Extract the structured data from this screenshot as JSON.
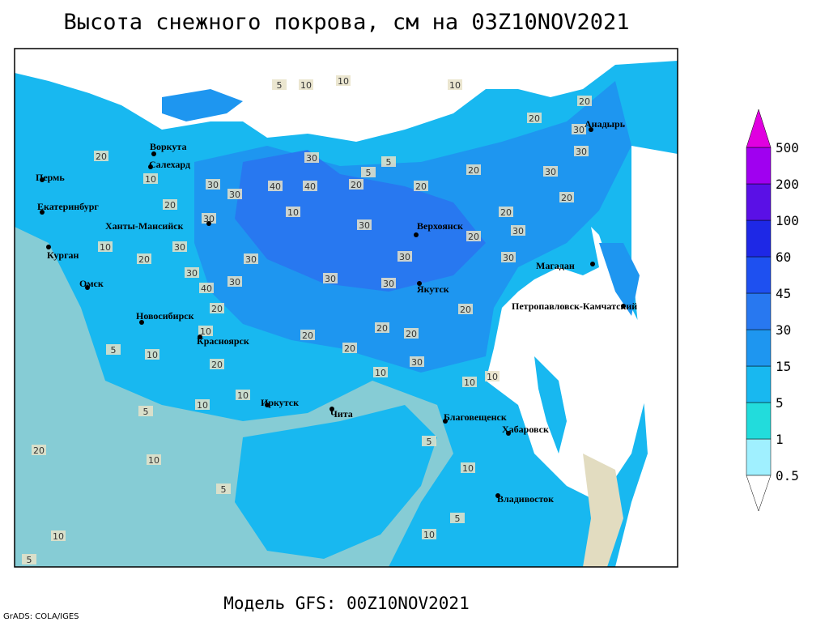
{
  "title": "Высота снежного покрова, см на 03Z10NOV2021",
  "footer": "Модель GFS: 00Z10NOV2021",
  "credit": "GrADS: COLA/IGES",
  "cities": [
    "Воркута",
    "Салехард",
    "Пермь",
    "Екатеринбург",
    "Ханты-Мансийск",
    "Курган",
    "Омск",
    "Новосибирск",
    "Красноярск",
    "Иркутск",
    "Чита",
    "Верхоянск",
    "Якутск",
    "Анадырь",
    "Магадан",
    "Петропавловск-Камчатский",
    "Благовещенск",
    "Хабаровск",
    "Владивосток"
  ],
  "contour_labels": [
    10,
    10,
    5,
    10,
    5,
    30,
    40,
    40,
    30,
    30,
    20,
    10,
    20,
    30,
    10,
    20,
    30,
    30,
    40,
    30,
    30,
    30,
    30,
    30,
    30,
    20,
    20,
    30,
    30,
    20,
    20,
    20,
    20,
    30,
    20,
    10,
    20,
    10,
    10,
    5,
    20,
    10,
    10,
    5,
    20,
    10,
    5,
    5,
    10,
    5,
    10,
    10,
    5,
    20,
    30,
    30,
    30,
    20,
    20,
    20,
    20,
    5,
    20,
    10,
    10,
    10
  ],
  "legend": {
    "levels": [
      0.5,
      1,
      5,
      15,
      30,
      45,
      60,
      100,
      200,
      500
    ],
    "colors": [
      "#ffffff",
      "#a0f0ff",
      "#22dcdc",
      "#18b8f0",
      "#1e96f0",
      "#2878f0",
      "#1e50f0",
      "#1e28e6",
      "#5a10e6",
      "#a000f0",
      "#e000e0"
    ]
  }
}
